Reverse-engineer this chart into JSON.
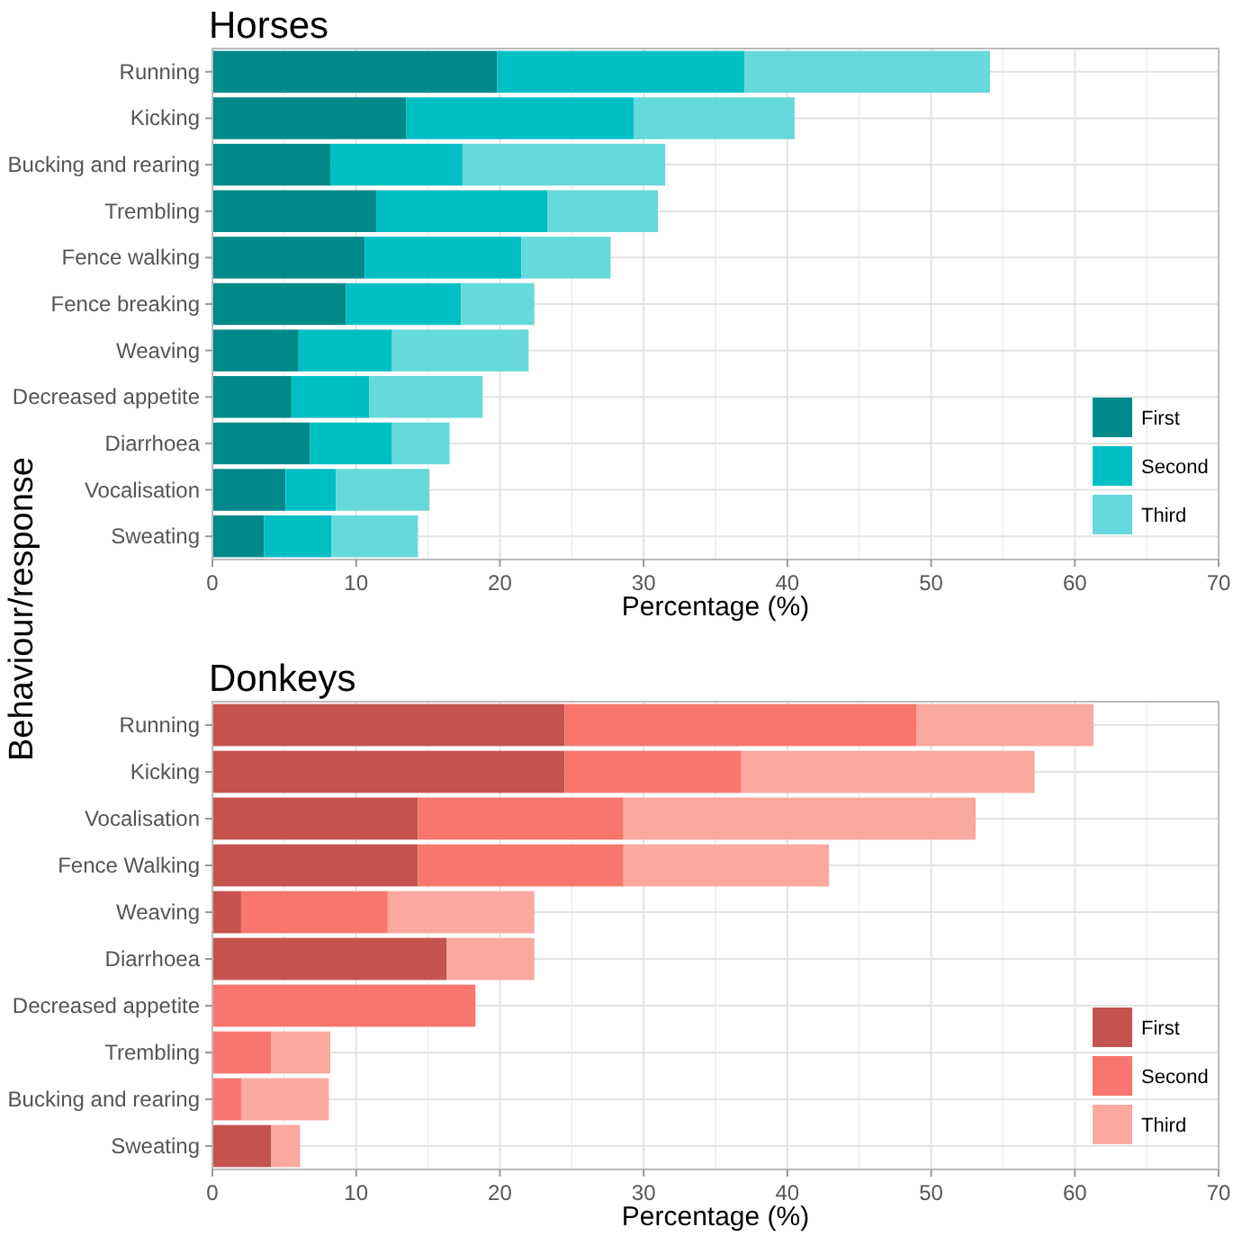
{
  "chart_data": [
    {
      "type": "bar",
      "title": "Horses",
      "xlabel": "Percentage (%)",
      "ylabel": "Behaviour/response",
      "orientation": "horizontal",
      "stacked": true,
      "grid": true,
      "legend": "bottom right",
      "categories": [
        "Running",
        "Kicking",
        "Bucking and rearing",
        "Trembling",
        "Fence walking",
        "Fence breaking",
        "Weaving",
        "Decreased appetite",
        "Diarrhoea",
        "Vocalisation",
        "Sweating"
      ],
      "xlim": [
        0,
        70
      ],
      "xticks": [
        0,
        10,
        20,
        30,
        40,
        50,
        60,
        70
      ],
      "series": [
        {
          "name": "First",
          "color": "#00898a",
          "values": [
            19.8,
            13.5,
            8.2,
            11.4,
            10.6,
            9.3,
            6.0,
            5.5,
            6.8,
            5.1,
            3.6
          ]
        },
        {
          "name": "Second",
          "color": "#00bfc4",
          "values": [
            17.2,
            15.8,
            9.2,
            11.9,
            10.9,
            8.0,
            6.5,
            5.4,
            5.7,
            3.5,
            4.7
          ]
        },
        {
          "name": "Third",
          "color": "#66d9dc",
          "values": [
            17.1,
            11.2,
            14.1,
            7.7,
            6.2,
            5.1,
            9.5,
            7.9,
            4.0,
            6.5,
            6.0
          ]
        }
      ]
    },
    {
      "type": "bar",
      "title": "Donkeys",
      "xlabel": "Percentage (%)",
      "orientation": "horizontal",
      "stacked": true,
      "grid": true,
      "legend": "bottom right",
      "categories": [
        "Running",
        "Kicking",
        "Vocalisation",
        "Fence Walking",
        "Weaving",
        "Diarrhoea",
        "Decreased appetite",
        "Trembling",
        "Bucking and rearing",
        "Sweating"
      ],
      "xlim": [
        0,
        70
      ],
      "xticks": [
        0,
        10,
        20,
        30,
        40,
        50,
        60,
        70
      ],
      "series": [
        {
          "name": "First",
          "color": "#c5534e",
          "values": [
            24.5,
            24.5,
            14.3,
            14.3,
            2.0,
            16.3,
            0,
            0,
            0,
            4.1
          ]
        },
        {
          "name": "Second",
          "color": "#f8766d",
          "values": [
            24.5,
            12.3,
            14.3,
            14.3,
            10.2,
            0,
            18.3,
            4.1,
            2.0,
            0
          ]
        },
        {
          "name": "Third",
          "color": "#fba89f",
          "values": [
            12.3,
            20.4,
            24.5,
            14.3,
            10.2,
            6.1,
            0,
            4.1,
            6.1,
            2.0
          ]
        }
      ]
    }
  ]
}
